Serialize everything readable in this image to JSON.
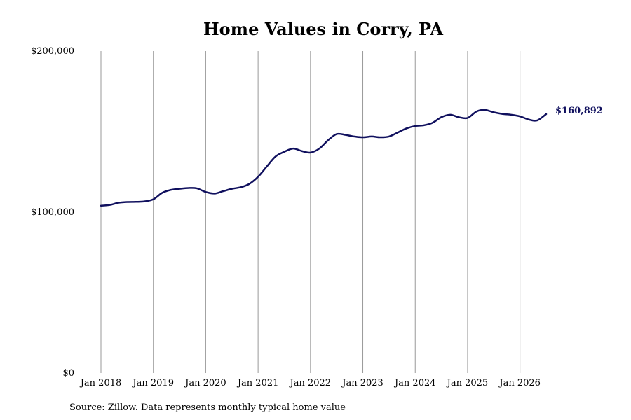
{
  "chart_data": {
    "type": "line",
    "title": "Home Values in Corry, PA",
    "xlabel": "",
    "ylabel": "",
    "ylim": [
      0,
      200000
    ],
    "y_ticks": [
      {
        "value": 0,
        "label": "$0"
      },
      {
        "value": 100000,
        "label": "$100,000"
      },
      {
        "value": 200000,
        "label": "$200,000"
      }
    ],
    "x_ticks": [
      {
        "value": 2018.0,
        "label": "Jan 2018"
      },
      {
        "value": 2019.0,
        "label": "Jan 2019"
      },
      {
        "value": 2020.0,
        "label": "Jan 2020"
      },
      {
        "value": 2021.0,
        "label": "Jan 2021"
      },
      {
        "value": 2022.0,
        "label": "Jan 2022"
      },
      {
        "value": 2023.0,
        "label": "Jan 2023"
      },
      {
        "value": 2024.0,
        "label": "Jan 2024"
      },
      {
        "value": 2025.0,
        "label": "Jan 2025"
      },
      {
        "value": 2026.0,
        "label": "Jan 2026"
      }
    ],
    "xlim": [
      2018.0,
      2026.5
    ],
    "grid": "vertical",
    "legend": "none",
    "series": [
      {
        "color": "#10105e",
        "x": [
          2018.0,
          2018.17,
          2018.33,
          2018.5,
          2018.67,
          2018.83,
          2019.0,
          2019.17,
          2019.33,
          2019.5,
          2019.67,
          2019.83,
          2020.0,
          2020.17,
          2020.33,
          2020.5,
          2020.67,
          2020.83,
          2021.0,
          2021.17,
          2021.33,
          2021.5,
          2021.67,
          2021.83,
          2022.0,
          2022.17,
          2022.33,
          2022.5,
          2022.67,
          2022.83,
          2023.0,
          2023.17,
          2023.33,
          2023.5,
          2023.67,
          2023.83,
          2024.0,
          2024.17,
          2024.33,
          2024.5,
          2024.67,
          2024.83,
          2025.0,
          2025.17,
          2025.33,
          2025.5,
          2025.67,
          2025.83,
          2026.0,
          2026.17,
          2026.33,
          2026.5
        ],
        "values": [
          104000,
          104500,
          105800,
          106300,
          106400,
          106700,
          108000,
          112000,
          113800,
          114500,
          115000,
          114800,
          112500,
          111600,
          113000,
          114500,
          115500,
          117500,
          122000,
          128500,
          134500,
          137500,
          139500,
          138000,
          137000,
          139500,
          144500,
          148500,
          148000,
          147000,
          146500,
          147000,
          146500,
          147000,
          149500,
          152000,
          153500,
          154000,
          155500,
          159000,
          160500,
          159000,
          158500,
          162500,
          163500,
          162000,
          161000,
          160500,
          159500,
          157500,
          157000,
          160892
        ]
      }
    ],
    "end_label": "$160,892",
    "source": "Source: Zillow. Data represents monthly typical home value"
  }
}
